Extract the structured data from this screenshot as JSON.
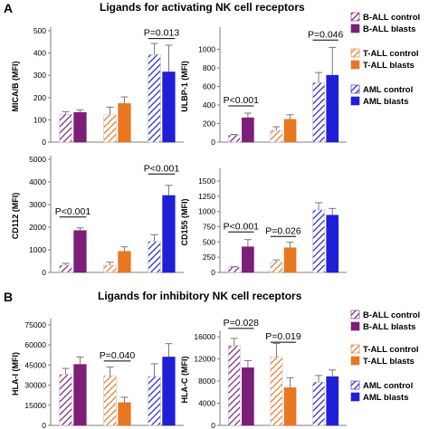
{
  "figure": {
    "sections": [
      {
        "letter": "A",
        "title": "Ligands for activating NK cell receptors"
      },
      {
        "letter": "B",
        "title": "Ligands for inhibitory  NK cell receptors"
      }
    ],
    "legend_A": [
      {
        "label": "B-ALL control",
        "color": "#7b1f78",
        "pattern": "hatch"
      },
      {
        "label": "B-ALL blasts",
        "color": "#7b1f78",
        "pattern": "solid"
      },
      {
        "label": "T-ALL control",
        "color": "#e87722",
        "pattern": "hatch"
      },
      {
        "label": "T-ALL blasts",
        "color": "#e87722",
        "pattern": "solid"
      },
      {
        "label": "AML control",
        "color": "#1f1fd6",
        "pattern": "hatch"
      },
      {
        "label": "AML blasts",
        "color": "#1f1fd6",
        "pattern": "solid"
      }
    ],
    "legend_B": [
      {
        "label": "B-ALL control",
        "color": "#7b1f78",
        "pattern": "hatch"
      },
      {
        "label": "B-ALL blasts",
        "color": "#7b1f78",
        "pattern": "solid"
      },
      {
        "label": "T-ALL control",
        "color": "#e87722",
        "pattern": "hatch"
      },
      {
        "label": "T-ALL blasts",
        "color": "#e87722",
        "pattern": "solid"
      },
      {
        "label": "AML control",
        "color": "#1f1fd6",
        "pattern": "hatch"
      },
      {
        "label": "AML blasts",
        "color": "#1f1fd6",
        "pattern": "solid"
      }
    ]
  },
  "chart_data": [
    {
      "type": "bar",
      "panel": "A",
      "ylabel": "MICA/B (MFI)",
      "ylim": [
        0,
        500
      ],
      "yticks": [
        0,
        100,
        200,
        300,
        400,
        500
      ],
      "values": [
        125,
        133,
        122,
        173,
        393,
        315
      ],
      "errors": [
        12,
        12,
        35,
        30,
        50,
        120
      ],
      "annotations": [
        {
          "text": "P=0.013",
          "from": 4,
          "to": 5,
          "y": 465
        }
      ]
    },
    {
      "type": "bar",
      "panel": "A",
      "ylabel": "ULBP-1 (MFI)",
      "ylim": [
        0,
        1200
      ],
      "yticks": [
        0,
        200,
        400,
        600,
        800,
        1000
      ],
      "values": [
        75,
        262,
        125,
        245,
        640,
        720
      ],
      "errors": [
        8,
        50,
        40,
        50,
        110,
        300
      ],
      "annotations": [
        {
          "text": "P<0.001",
          "from": 0,
          "to": 1,
          "y": 390
        },
        {
          "text": "P=0.046",
          "from": 4,
          "to": 5,
          "y": 1100
        }
      ]
    },
    {
      "type": "bar",
      "panel": "A",
      "ylabel": "CD112 (MFI)",
      "ylim": [
        0,
        5000
      ],
      "yticks": [
        0,
        1000,
        2000,
        3000,
        4000,
        5000
      ],
      "values": [
        320,
        1850,
        320,
        930,
        1370,
        3400
      ],
      "errors": [
        80,
        120,
        130,
        200,
        300,
        450
      ],
      "annotations": [
        {
          "text": "P<0.001",
          "from": 0,
          "to": 1,
          "y": 2450
        },
        {
          "text": "P<0.001",
          "from": 4,
          "to": 5,
          "y": 4350
        }
      ]
    },
    {
      "type": "bar",
      "panel": "A",
      "ylabel": "CD155 (MFI)",
      "ylim": [
        0,
        1650
      ],
      "yticks": [
        0,
        250,
        500,
        750,
        1000,
        1250,
        1500
      ],
      "values": [
        85,
        420,
        165,
        405,
        1025,
        940
      ],
      "errors": [
        10,
        120,
        40,
        90,
        120,
        110
      ],
      "annotations": [
        {
          "text": "P<0.001",
          "from": 0,
          "to": 1,
          "y": 665
        },
        {
          "text": "P=0.026",
          "from": 2,
          "to": 3,
          "y": 590
        }
      ]
    },
    {
      "type": "bar",
      "panel": "B",
      "ylabel": "HLA-I (MFI)",
      "ylim": [
        0,
        77000
      ],
      "yticks": [
        0,
        15000,
        30000,
        45000,
        60000,
        75000
      ],
      "values": [
        38000,
        45500,
        37000,
        17000,
        36500,
        51000
      ],
      "errors": [
        4500,
        5500,
        6500,
        4000,
        9500,
        10000
      ],
      "annotations": [
        {
          "text": "P=0.040",
          "from": 2,
          "to": 3,
          "y": 48000
        }
      ]
    },
    {
      "type": "bar",
      "panel": "B",
      "ylabel": "HLA-C (MFI)",
      "ylim": [
        0,
        16500
      ],
      "yticks": [
        0,
        4000,
        8000,
        12000,
        16000
      ],
      "values": [
        14400,
        10400,
        12400,
        6800,
        7800,
        8800
      ],
      "errors": [
        1300,
        1300,
        2400,
        1800,
        1200,
        1200
      ],
      "annotations": [
        {
          "text": "P=0.028",
          "from": 0,
          "to": 1,
          "y": 17500
        },
        {
          "text": "P=0.019",
          "from": 2,
          "to": 3,
          "y": 15000
        }
      ]
    }
  ]
}
